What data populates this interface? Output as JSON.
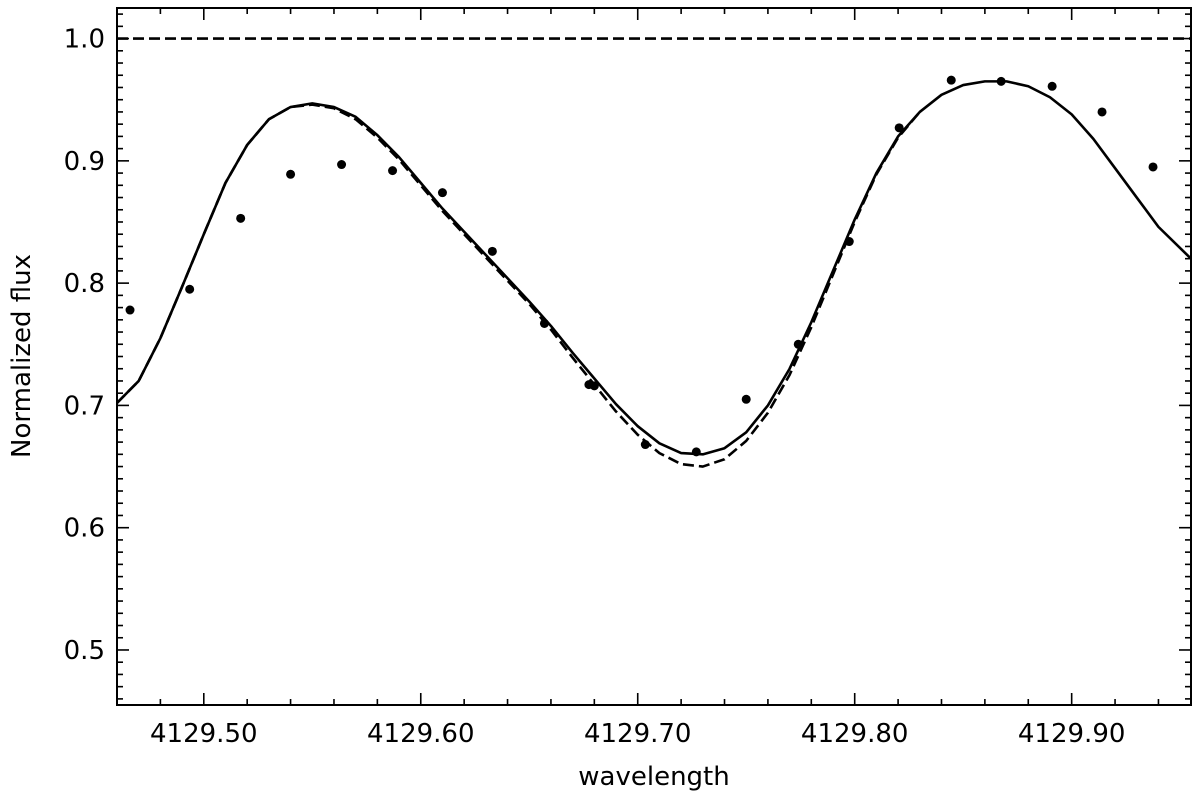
{
  "chart_data": {
    "type": "line",
    "title": "",
    "xlabel": "wavelength",
    "ylabel": "Normalized flux",
    "xlim": [
      4129.46,
      4129.955
    ],
    "ylim": [
      0.455,
      1.025
    ],
    "x_ticks": [
      4129.5,
      4129.6,
      4129.7,
      4129.8,
      4129.9
    ],
    "x_tick_labels": [
      "4129.50",
      "4129.60",
      "4129.70",
      "4129.80",
      "4129.90"
    ],
    "y_ticks": [
      0.5,
      0.6,
      0.7,
      0.8,
      0.9,
      1.0
    ],
    "y_tick_labels": [
      "0.5",
      "0.6",
      "0.7",
      "0.8",
      "0.9",
      "1.0"
    ],
    "grid": false,
    "legend": "none",
    "series": [
      {
        "style": "dashed",
        "x": [
          4129.46,
          4129.955
        ],
        "y": [
          1.0,
          1.0
        ]
      },
      {
        "style": "solid",
        "x": [
          4129.46,
          4129.47,
          4129.48,
          4129.49,
          4129.5,
          4129.51,
          4129.52,
          4129.53,
          4129.54,
          4129.55,
          4129.56,
          4129.57,
          4129.58,
          4129.59,
          4129.6,
          4129.61,
          4129.62,
          4129.63,
          4129.64,
          4129.65,
          4129.66,
          4129.67,
          4129.68,
          4129.69,
          4129.7,
          4129.71,
          4129.72,
          4129.73,
          4129.74,
          4129.75,
          4129.76,
          4129.77,
          4129.78,
          4129.79,
          4129.8,
          4129.81,
          4129.82,
          4129.83,
          4129.84,
          4129.85,
          4129.86,
          4129.87,
          4129.88,
          4129.89,
          4129.9,
          4129.91,
          4129.92,
          4129.93,
          4129.94,
          4129.955
        ],
        "y": [
          0.702,
          0.72,
          0.755,
          0.797,
          0.84,
          0.882,
          0.913,
          0.934,
          0.944,
          0.947,
          0.944,
          0.936,
          0.921,
          0.903,
          0.882,
          0.861,
          0.842,
          0.823,
          0.804,
          0.785,
          0.765,
          0.743,
          0.722,
          0.701,
          0.683,
          0.669,
          0.661,
          0.66,
          0.665,
          0.678,
          0.7,
          0.73,
          0.768,
          0.81,
          0.852,
          0.89,
          0.92,
          0.94,
          0.954,
          0.962,
          0.965,
          0.965,
          0.961,
          0.952,
          0.938,
          0.918,
          0.894,
          0.87,
          0.846,
          0.82
        ]
      },
      {
        "style": "dashed",
        "x": [
          4129.46,
          4129.47,
          4129.48,
          4129.49,
          4129.5,
          4129.51,
          4129.52,
          4129.53,
          4129.54,
          4129.55,
          4129.56,
          4129.57,
          4129.58,
          4129.59,
          4129.6,
          4129.61,
          4129.62,
          4129.63,
          4129.64,
          4129.65,
          4129.66,
          4129.67,
          4129.68,
          4129.69,
          4129.7,
          4129.71,
          4129.72,
          4129.73,
          4129.74,
          4129.75,
          4129.76,
          4129.77,
          4129.78,
          4129.79,
          4129.8,
          4129.81,
          4129.82,
          4129.83
        ],
        "y": [
          0.702,
          0.72,
          0.755,
          0.797,
          0.84,
          0.882,
          0.913,
          0.934,
          0.944,
          0.946,
          0.943,
          0.934,
          0.919,
          0.901,
          0.88,
          0.859,
          0.84,
          0.821,
          0.802,
          0.783,
          0.762,
          0.739,
          0.717,
          0.695,
          0.676,
          0.661,
          0.652,
          0.65,
          0.656,
          0.671,
          0.694,
          0.725,
          0.764,
          0.807,
          0.85,
          0.889,
          0.919,
          0.94
        ]
      },
      {
        "style": "points",
        "x": [
          4129.466,
          4129.4935,
          4129.517,
          4129.54,
          4129.5635,
          4129.587,
          4129.61,
          4129.633,
          4129.657,
          4129.6775,
          4129.68,
          4129.7035,
          4129.727,
          4129.75,
          4129.774,
          4129.7975,
          4129.8205,
          4129.8445,
          4129.8675,
          4129.891,
          4129.914,
          4129.9375
        ],
        "y": [
          0.778,
          0.795,
          0.853,
          0.889,
          0.897,
          0.892,
          0.874,
          0.826,
          0.767,
          0.717,
          0.716,
          0.668,
          0.662,
          0.705,
          0.75,
          0.834,
          0.927,
          0.966,
          0.965,
          0.961,
          0.94,
          0.895
        ]
      }
    ]
  }
}
